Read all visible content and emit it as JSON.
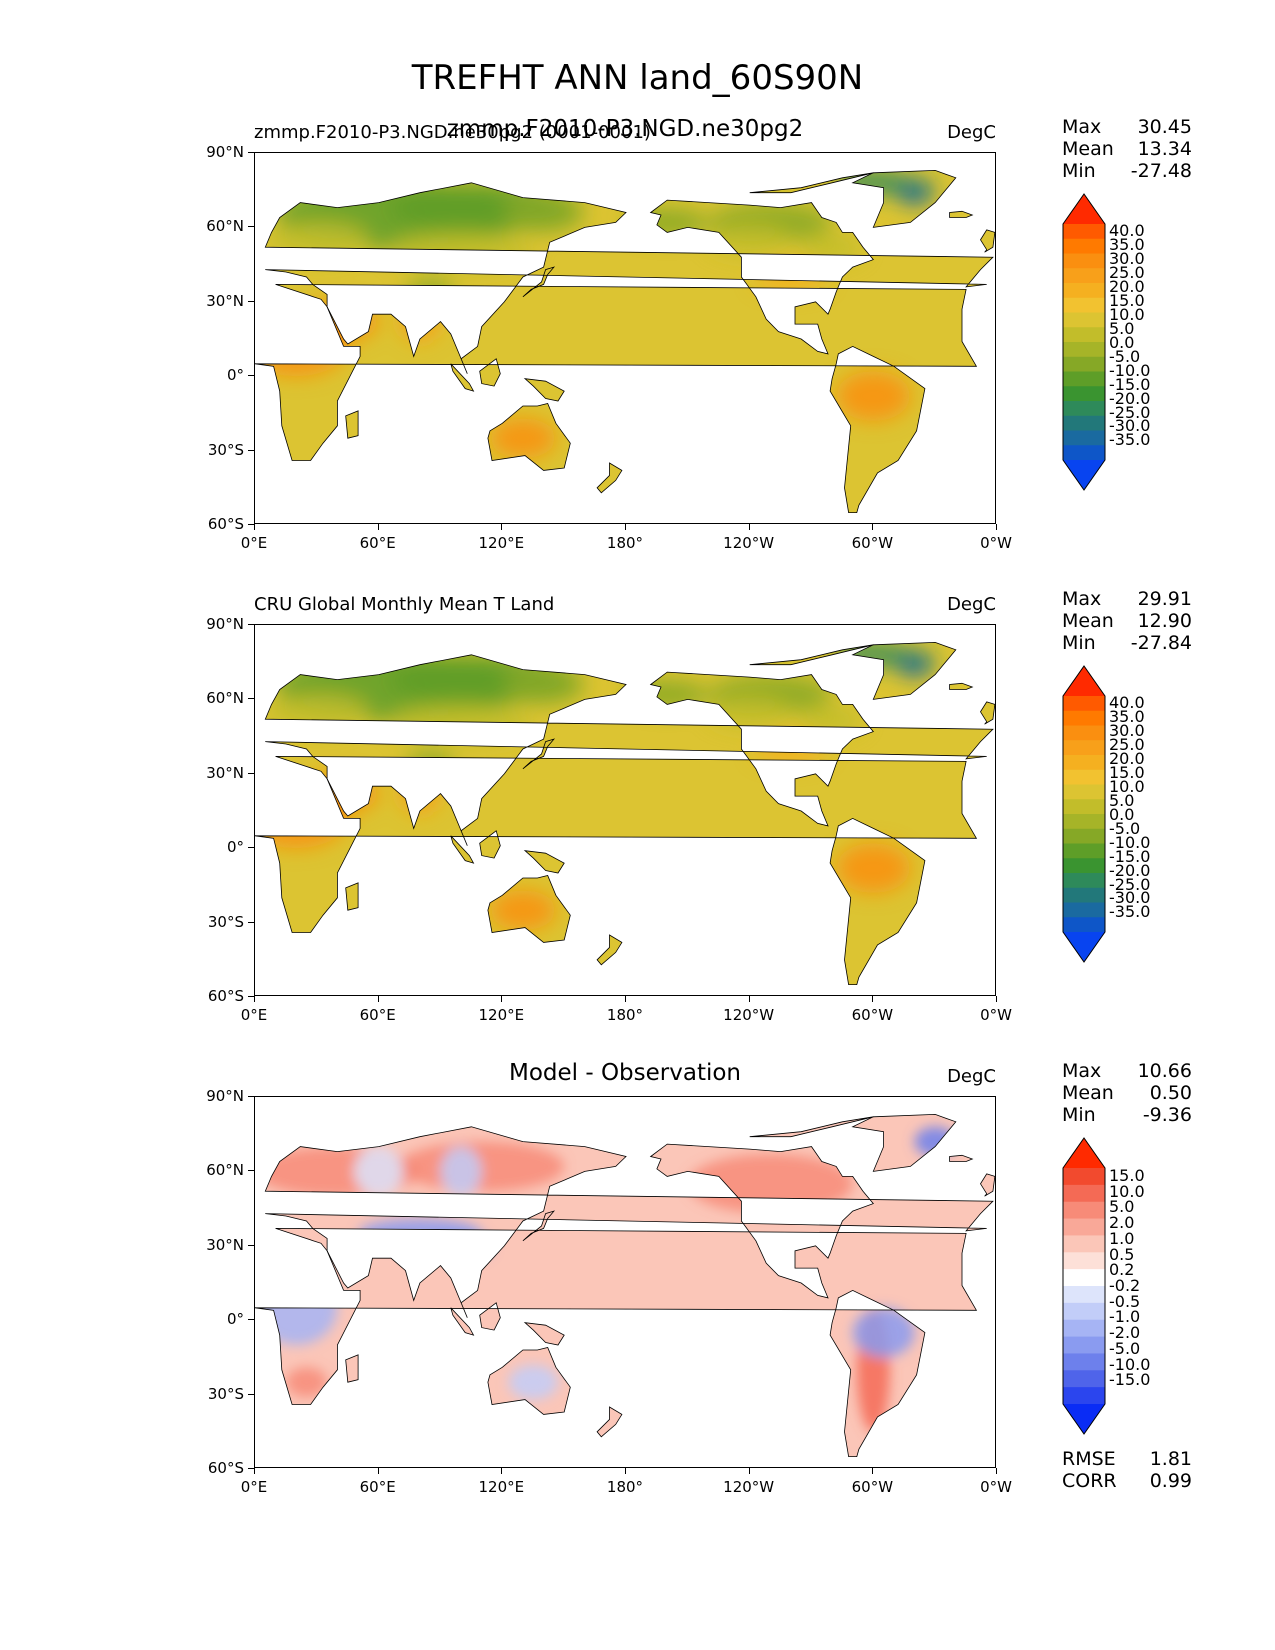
{
  "figure": {
    "title": "TREFHT ANN land_60S90N"
  },
  "axes": {
    "lat_labels": [
      "90°N",
      "60°N",
      "30°N",
      "0°",
      "30°S",
      "60°S"
    ],
    "lon_labels": [
      "0°E",
      "60°E",
      "120°E",
      "180°",
      "120°W",
      "60°W",
      "0°W"
    ]
  },
  "panels": [
    {
      "left_title": "zmmp.F2010-P3.NGD.ne30pg2 (0001-0001)",
      "center_title": "zmmp.F2010-P3.NGD.ne30pg2",
      "units": "DegC",
      "stats": {
        "labels": [
          "Max",
          "Mean",
          "Min"
        ],
        "values": [
          "30.45",
          "13.34",
          "-27.48"
        ]
      },
      "colorbar": {
        "ticks": [
          "40.0",
          "35.0",
          "30.0",
          "25.0",
          "20.0",
          "15.0",
          "10.0",
          "5.0",
          "0.0",
          "-5.0",
          "-10.0",
          "-15.0",
          "-20.0",
          "-25.0",
          "-30.0",
          "-35.0"
        ],
        "colors": [
          "#ff2a00",
          "#ff5a00",
          "#ff7a00",
          "#fa8f10",
          "#f8a01a",
          "#f5b020",
          "#f2c230",
          "#dcc432",
          "#c2bd2a",
          "#a6b428",
          "#86a826",
          "#5e9e28",
          "#3a9430",
          "#2e8a5a",
          "#22787a",
          "#1a6aa0",
          "#0e56c8",
          "#0844f0"
        ]
      },
      "map_style": "abs"
    },
    {
      "left_title": "CRU Global Monthly Mean T Land",
      "center_title": "",
      "units": "DegC",
      "stats": {
        "labels": [
          "Max",
          "Mean",
          "Min"
        ],
        "values": [
          "29.91",
          "12.90",
          "-27.84"
        ]
      },
      "colorbar": {
        "ticks": [
          "40.0",
          "35.0",
          "30.0",
          "25.0",
          "20.0",
          "15.0",
          "10.0",
          "5.0",
          "0.0",
          "-5.0",
          "-10.0",
          "-15.0",
          "-20.0",
          "-25.0",
          "-30.0",
          "-35.0"
        ],
        "colors": [
          "#ff2a00",
          "#ff5a00",
          "#ff7a00",
          "#fa8f10",
          "#f8a01a",
          "#f5b020",
          "#f2c230",
          "#dcc432",
          "#c2bd2a",
          "#a6b428",
          "#86a826",
          "#5e9e28",
          "#3a9430",
          "#2e8a5a",
          "#22787a",
          "#1a6aa0",
          "#0e56c8",
          "#0844f0"
        ]
      },
      "map_style": "abs"
    },
    {
      "left_title": "",
      "center_title": "Model - Observation",
      "units": "DegC",
      "stats": {
        "labels": [
          "Max",
          "Mean",
          "Min"
        ],
        "values": [
          "10.66",
          "0.50",
          "-9.36"
        ]
      },
      "colorbar": {
        "ticks": [
          "15.0",
          "10.0",
          "5.0",
          "2.0",
          "1.0",
          "0.5",
          "0.2",
          "-0.2",
          "-0.5",
          "-1.0",
          "-2.0",
          "-5.0",
          "-10.0",
          "-15.0"
        ],
        "colors": [
          "#ff2a00",
          "#f24a2e",
          "#f46a55",
          "#f78b78",
          "#f9a898",
          "#fbc6b8",
          "#fde0d8",
          "#ffffff",
          "#dde4fb",
          "#c2cdf8",
          "#a6b4f4",
          "#8a9bf0",
          "#6d80ec",
          "#4f64ea",
          "#2b45ee",
          "#0a2cf5"
        ]
      },
      "map_style": "diff",
      "extra_stats": {
        "labels": [
          "RMSE",
          "CORR"
        ],
        "values": [
          "1.81",
          "0.99"
        ]
      }
    }
  ]
}
